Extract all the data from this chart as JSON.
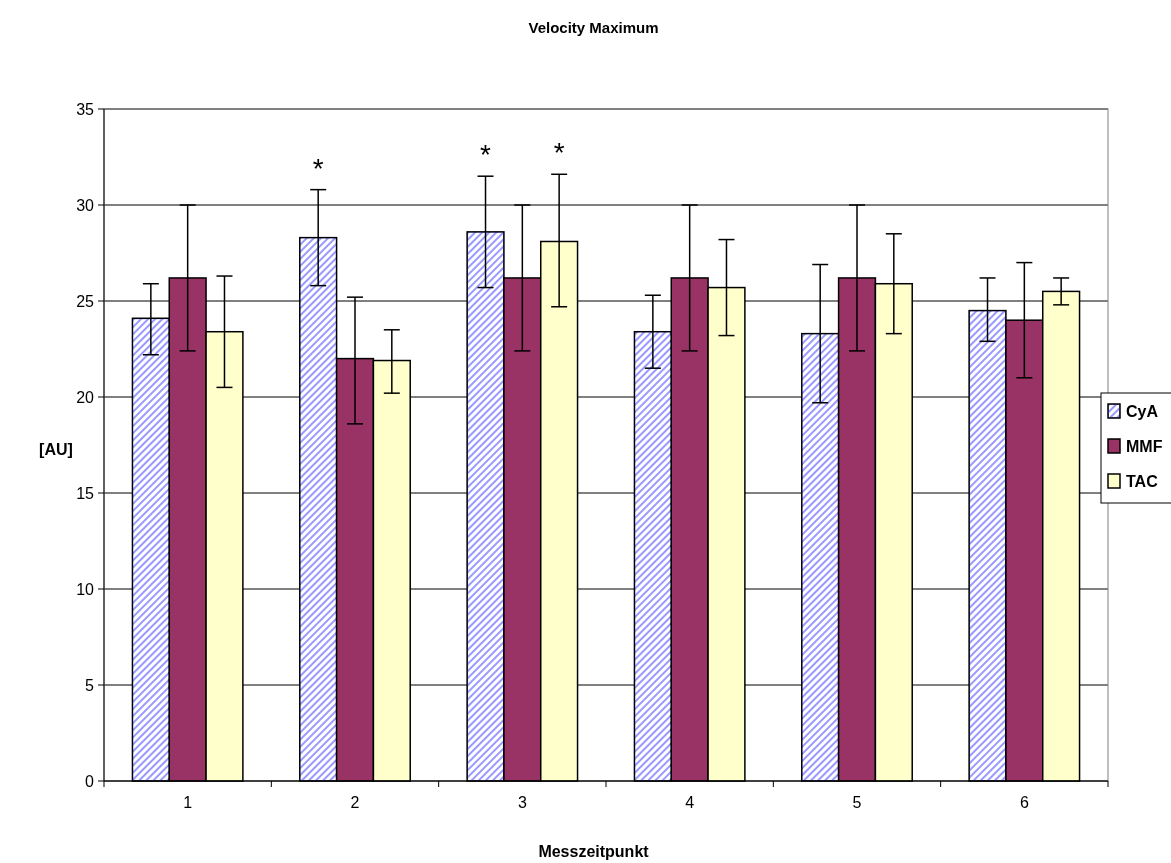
{
  "chart_data": {
    "type": "bar",
    "title": "Velocity Maximum",
    "xlabel": "Messzeitpunkt",
    "ylabel": "[AU]",
    "categories": [
      "1",
      "2",
      "3",
      "4",
      "5",
      "6"
    ],
    "series": [
      {
        "name": "CyA",
        "color": "#9999ff",
        "values": [
          24.1,
          28.3,
          28.6,
          23.4,
          23.3,
          24.5
        ],
        "errors": [
          [
            22.2,
            25.9
          ],
          [
            25.8,
            30.8
          ],
          [
            25.7,
            31.5
          ],
          [
            21.5,
            25.3
          ],
          [
            19.7,
            26.9
          ],
          [
            22.9,
            26.2
          ]
        ]
      },
      {
        "name": "MMF",
        "color": "#993366",
        "values": [
          26.2,
          22.0,
          26.2,
          26.2,
          26.2,
          24.0
        ],
        "errors": [
          [
            22.4,
            30
          ],
          [
            18.6,
            25.2
          ],
          [
            22.4,
            30
          ],
          [
            22.4,
            30
          ],
          [
            22.4,
            30
          ],
          [
            21.0,
            27.0
          ]
        ]
      },
      {
        "name": "TAC",
        "color": "#ffffcc",
        "values": [
          23.4,
          21.9,
          28.1,
          25.7,
          25.9,
          25.5
        ],
        "errors": [
          [
            20.5,
            26.3
          ],
          [
            20.2,
            23.5
          ],
          [
            24.7,
            31.6
          ],
          [
            23.2,
            28.2
          ],
          [
            23.3,
            28.5
          ],
          [
            24.8,
            26.2
          ]
        ]
      }
    ],
    "annotations": [
      "*",
      "*",
      "*"
    ],
    "ylim": [
      0,
      35
    ],
    "yticks": [
      0,
      5,
      10,
      15,
      20,
      25,
      30,
      35
    ],
    "grid": "y",
    "legend": "right"
  }
}
